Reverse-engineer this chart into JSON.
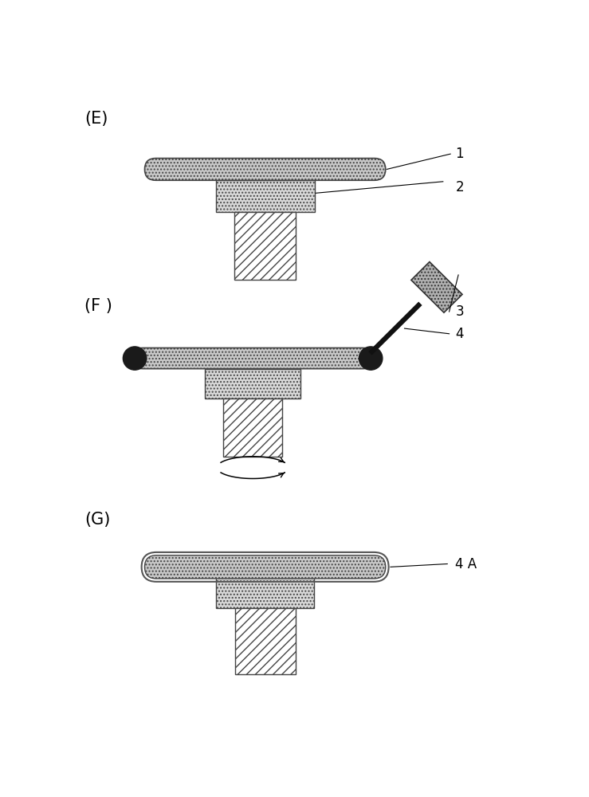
{
  "bg_color": "#ffffff",
  "label_E": "(E)",
  "label_F": "(F )",
  "label_G": "(G)",
  "label_1": "1",
  "label_2": "2",
  "label_3": "3",
  "label_4": "4",
  "label_4A": "4 A",
  "wafer_fc": "#c8c8c8",
  "wafer_ec": "#444444",
  "chuck_top_fc": "#d8d8d8",
  "chuck_top_ec": "#444444",
  "stem_fc": "#ffffff",
  "stem_ec": "#444444",
  "nozzle_fc": "#b0b0b0",
  "nozzle_ec": "#333333",
  "tube_color": "#111111",
  "edge_blob_color": "#1a1a1a",
  "film_ec": "#555555",
  "film_fc": "#e8e8e8",
  "line_color": "#000000"
}
